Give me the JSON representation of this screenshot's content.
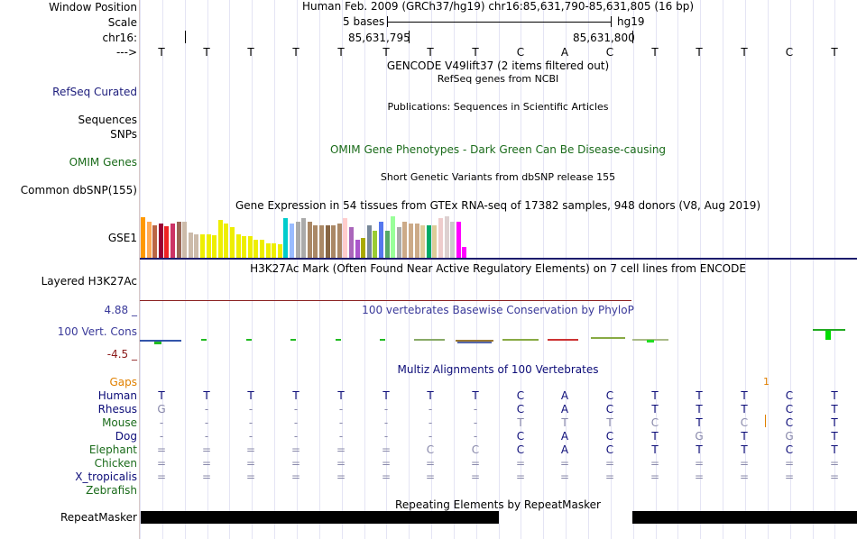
{
  "labels": {
    "window_position": "Window Position",
    "scale": "Scale",
    "chrom": "chr16:",
    "strand": "--->",
    "refseq": "RefSeq Curated",
    "sequences": "Sequences",
    "snps": "SNPs",
    "omim": "OMIM Genes",
    "dbsnp": "Common dbSNP(155)",
    "gse": "GSE1",
    "h3k27ac": "Layered H3K27Ac",
    "cons_max": "4.88 _",
    "cons": "100 Vert. Cons",
    "cons_min": "-4.5 _",
    "gaps": "Gaps",
    "species": [
      "Human",
      "Rhesus",
      "Mouse",
      "Dog",
      "Elephant",
      "Chicken",
      "X_tropicalis",
      "Zebrafish"
    ],
    "repeatmasker": "RepeatMasker"
  },
  "header": {
    "position": "Human Feb. 2009 (GRCh37/hg19)   chr16:85,631,790-85,631,805 (16 bp)",
    "scale_text": "5 bases",
    "assembly": "hg19",
    "coord_left": "85,631,795",
    "coord_right": "85,631,800"
  },
  "sequence": [
    "T",
    "T",
    "T",
    "T",
    "T",
    "T",
    "T",
    "T",
    "C",
    "A",
    "C",
    "T",
    "T",
    "T",
    "C",
    "T"
  ],
  "tracks": {
    "gencode": "GENCODE V49lift37 (2 items filtered out)",
    "refseq": "RefSeq genes from NCBI",
    "publications": "Publications: Sequences in Scientific Articles",
    "omim": "OMIM Gene Phenotypes - Dark Green Can Be Disease-causing",
    "dbsnp": "Short Genetic Variants from dbSNP release 155",
    "gtex": "Gene Expression in 54 tissues from GTEx RNA-seq of 17382 samples, 948 donors (V8, Aug 2019)",
    "h3k27ac": "H3K27Ac Mark (Often Found Near Active Regulatory Elements) on 7 cell lines from ENCODE",
    "conservation": "100 vertebrates Basewise Conservation by PhyloP",
    "multiz": "Multiz Alignments of 100 Vertebrates",
    "repeats": "Repeating Elements by RepeatMasker"
  },
  "gaps_mark": "1",
  "alignments": [
    [
      "T",
      "T",
      "T",
      "T",
      "T",
      "T",
      "T",
      "T",
      "C",
      "A",
      "C",
      "T",
      "T",
      "T",
      "C",
      "T"
    ],
    [
      "G",
      "-",
      "-",
      "-",
      "-",
      "-",
      "-",
      "-",
      "C",
      "A",
      "C",
      "T",
      "T",
      "T",
      "C",
      "T"
    ],
    [
      "-",
      "-",
      "-",
      "-",
      "-",
      "-",
      "-",
      "-",
      "T",
      "T",
      "T",
      "C",
      "T",
      "C",
      "C",
      "T"
    ],
    [
      "-",
      "-",
      "-",
      "-",
      "-",
      "-",
      "-",
      "-",
      "C",
      "A",
      "C",
      "T",
      "G",
      "T",
      "G",
      "T"
    ],
    [
      "=",
      "=",
      "=",
      "=",
      "=",
      "=",
      "C",
      "C",
      "C",
      "A",
      "C",
      "T",
      "T",
      "T",
      "C",
      "T"
    ],
    [
      "=",
      "=",
      "=",
      "=",
      "=",
      "=",
      "=",
      "=",
      "=",
      "=",
      "=",
      "=",
      "=",
      "=",
      "=",
      "="
    ],
    [
      "=",
      "=",
      "=",
      "=",
      "=",
      "=",
      "=",
      "=",
      "=",
      "=",
      "=",
      "=",
      "=",
      "=",
      "=",
      "="
    ],
    [
      "",
      "",
      "",
      "",
      "",
      "",
      "",
      "",
      "",
      "",
      "",
      "",
      "",
      "",
      "",
      ""
    ]
  ],
  "gse_values": [
    45,
    40,
    36,
    38,
    35,
    38,
    40,
    40,
    28,
    26,
    26,
    26,
    25,
    42,
    38,
    34,
    26,
    24,
    24,
    20,
    20,
    16,
    16,
    15,
    44,
    38,
    40,
    44,
    40,
    36,
    36,
    36,
    36,
    38,
    44,
    34,
    20,
    22,
    36,
    30,
    40,
    30,
    46,
    34,
    40,
    38,
    38,
    36,
    36,
    36,
    44,
    46,
    40,
    40,
    12
  ],
  "gse_colors": [
    "#ff9900",
    "#ffaa55",
    "#bb6644",
    "#990033",
    "#ee2222",
    "#cc3366",
    "#996655",
    "#ccbbaa",
    "#ccbbaa",
    "#ccbbaa",
    "#eeee00",
    "#eeee00",
    "#eeee00",
    "#eeee00",
    "#eeee00",
    "#eeee00",
    "#eeee00",
    "#eeee00",
    "#eeee00",
    "#eeee00",
    "#eeee00",
    "#eeee00",
    "#eeee00",
    "#eeee00",
    "#00cccc",
    "#99bbff",
    "#aaaaaa",
    "#aaaaaa",
    "#aa8866",
    "#aa8866",
    "#aa8866",
    "#886644",
    "#aa8866",
    "#aa8866",
    "#ffcccc",
    "#aa66bb",
    "#aa55cc",
    "#aaaa00",
    "#778899",
    "#99cc33",
    "#5577ee",
    "#55aa66",
    "#99ff99",
    "#aaaaaa",
    "#ccaa88",
    "#ccaa88",
    "#ccaa88",
    "#ddcc99",
    "#00aa66",
    "#ddcc99",
    "#eecccc",
    "#ddd0d0",
    "#cccccc",
    "#ff00ff",
    "#ff00ff"
  ]
}
